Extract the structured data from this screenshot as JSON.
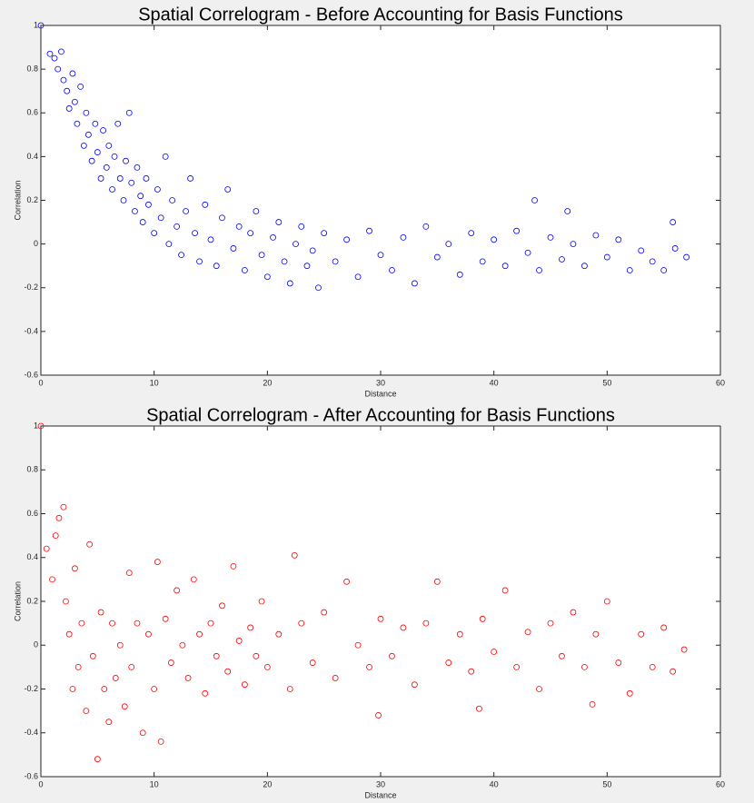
{
  "chart_data": [
    {
      "type": "scatter",
      "title": "Spatial Correlogram - Before Accounting for Basis Functions",
      "x_label": "Distance",
      "y_label": "Correlation",
      "color": "#0000ff",
      "xlim": [
        0,
        60
      ],
      "ylim": [
        -0.6,
        1
      ],
      "xticks": [
        0,
        10,
        20,
        30,
        40,
        50,
        60
      ],
      "yticks": [
        -0.6,
        -0.4,
        -0.2,
        0,
        0.2,
        0.4,
        0.6,
        0.8,
        1
      ],
      "x": [
        0,
        0.8,
        1.2,
        1.5,
        1.8,
        2,
        2.3,
        2.5,
        2.8,
        3,
        3.2,
        3.5,
        3.8,
        4,
        4.2,
        4.5,
        4.8,
        5,
        5.3,
        5.5,
        5.8,
        6,
        6.3,
        6.5,
        6.8,
        7,
        7.3,
        7.5,
        7.8,
        8,
        8.3,
        8.5,
        8.8,
        9,
        9.3,
        9.5,
        10,
        10.3,
        10.6,
        11,
        11.3,
        11.6,
        12,
        12.4,
        12.8,
        13.2,
        13.6,
        14,
        14.5,
        15,
        15.5,
        16,
        16.5,
        17,
        17.5,
        18,
        18.5,
        19,
        19.5,
        20,
        20.5,
        21,
        21.5,
        22,
        22.5,
        23,
        23.5,
        24,
        24.5,
        25,
        26,
        27,
        28,
        29,
        30,
        31,
        32,
        33,
        34,
        35,
        36,
        37,
        38,
        39,
        40,
        41,
        42,
        43,
        43.6,
        44,
        45,
        46,
        46.5,
        47,
        48,
        49,
        50,
        51,
        52,
        53,
        54,
        55,
        55.8,
        56,
        57
      ],
      "values": [
        1,
        0.87,
        0.85,
        0.8,
        0.88,
        0.75,
        0.7,
        0.62,
        0.78,
        0.65,
        0.55,
        0.72,
        0.45,
        0.6,
        0.5,
        0.38,
        0.55,
        0.42,
        0.3,
        0.52,
        0.35,
        0.45,
        0.25,
        0.4,
        0.55,
        0.3,
        0.2,
        0.38,
        0.6,
        0.28,
        0.15,
        0.35,
        0.22,
        0.1,
        0.3,
        0.18,
        0.05,
        0.25,
        0.12,
        0.4,
        0,
        0.2,
        0.08,
        -0.05,
        0.15,
        0.3,
        0.05,
        -0.08,
        0.18,
        0.02,
        -0.1,
        0.12,
        0.25,
        -0.02,
        0.08,
        -0.12,
        0.05,
        0.15,
        -0.05,
        -0.15,
        0.03,
        0.1,
        -0.08,
        -0.18,
        0,
        0.08,
        -0.1,
        -0.03,
        -0.2,
        0.05,
        -0.08,
        0.02,
        -0.15,
        0.06,
        -0.05,
        -0.12,
        0.03,
        -0.18,
        0.08,
        -0.06,
        0,
        -0.14,
        0.05,
        -0.08,
        0.02,
        -0.1,
        0.06,
        -0.04,
        0.2,
        -0.12,
        0.03,
        -0.07,
        0.15,
        0,
        -0.1,
        0.04,
        -0.06,
        0.02,
        -0.12,
        -0.03,
        -0.08,
        -0.12,
        0.1,
        -0.02,
        -0.06
      ]
    },
    {
      "type": "scatter",
      "title": "Spatial Correlogram - After Accounting for Basis Functions",
      "x_label": "Distance",
      "y_label": "Correlation",
      "color": "#ff0000",
      "xlim": [
        0,
        60
      ],
      "ylim": [
        -0.6,
        1
      ],
      "xticks": [
        0,
        10,
        20,
        30,
        40,
        50,
        60
      ],
      "yticks": [
        -0.6,
        -0.4,
        -0.2,
        0,
        0.2,
        0.4,
        0.6,
        0.8,
        1
      ],
      "x": [
        0,
        0.5,
        1,
        1.3,
        1.6,
        2,
        2.2,
        2.5,
        2.8,
        3,
        3.3,
        3.6,
        4,
        4.3,
        4.6,
        5,
        5.3,
        5.6,
        6,
        6.3,
        6.6,
        7,
        7.4,
        7.8,
        8,
        8.5,
        9,
        9.5,
        10,
        10.3,
        10.6,
        11,
        11.5,
        12,
        12.5,
        13,
        13.5,
        14,
        14.5,
        15,
        15.5,
        16,
        16.5,
        17,
        17.5,
        18,
        18.5,
        19,
        19.5,
        20,
        21,
        22,
        22.4,
        23,
        24,
        25,
        26,
        27,
        28,
        29,
        29.8,
        30,
        31,
        32,
        33,
        34,
        35,
        36,
        37,
        38,
        38.7,
        39,
        40,
        41,
        42,
        43,
        44,
        45,
        46,
        47,
        48,
        48.7,
        49,
        50,
        51,
        52,
        53,
        54,
        55,
        55.8,
        56.8
      ],
      "values": [
        1,
        0.44,
        0.3,
        0.5,
        0.58,
        0.63,
        0.2,
        0.05,
        -0.2,
        0.35,
        -0.1,
        0.1,
        -0.3,
        0.46,
        -0.05,
        -0.52,
        0.15,
        -0.2,
        -0.35,
        0.1,
        -0.15,
        0,
        -0.28,
        0.33,
        -0.1,
        0.1,
        -0.4,
        0.05,
        -0.2,
        0.38,
        -0.44,
        0.12,
        -0.08,
        0.25,
        0,
        -0.15,
        0.3,
        0.05,
        -0.22,
        0.1,
        -0.05,
        0.18,
        -0.12,
        0.36,
        0.02,
        -0.18,
        0.08,
        -0.05,
        0.2,
        -0.1,
        0.05,
        -0.2,
        0.41,
        0.1,
        -0.08,
        0.15,
        -0.15,
        0.29,
        0,
        -0.1,
        -0.32,
        0.12,
        -0.05,
        0.08,
        -0.18,
        0.1,
        0.29,
        -0.08,
        0.05,
        -0.12,
        -0.29,
        0.12,
        -0.03,
        0.25,
        -0.1,
        0.06,
        -0.2,
        0.1,
        -0.05,
        0.15,
        -0.1,
        -0.27,
        0.05,
        0.2,
        -0.08,
        -0.22,
        0.05,
        -0.1,
        0.08,
        -0.12,
        -0.02
      ]
    }
  ]
}
